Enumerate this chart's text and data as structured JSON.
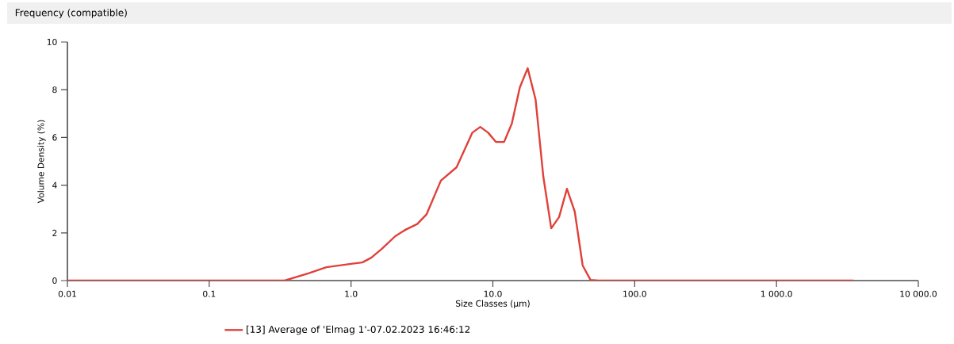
{
  "chart_data": {
    "type": "line",
    "title": "Frequency (compatible)",
    "xlabel": "Size Classes (µm)",
    "ylabel": "Volume Density (%)",
    "log": "x",
    "xlim": [
      0.01,
      10000
    ],
    "ylim": [
      0,
      10
    ],
    "xticks": [
      {
        "value": 0.01,
        "label": "0.01"
      },
      {
        "value": 0.1,
        "label": "0.1"
      },
      {
        "value": 1,
        "label": "1.0"
      },
      {
        "value": 10,
        "label": "10.0"
      },
      {
        "value": 100,
        "label": "100.0"
      },
      {
        "value": 1000,
        "label": "1 000.0"
      },
      {
        "value": 10000,
        "label": "10 000.0"
      }
    ],
    "yticks": [
      0,
      2,
      4,
      6,
      8,
      10
    ],
    "grid": false,
    "legend": "bottom",
    "marker": "none",
    "line_style": "solid",
    "series": [
      {
        "name": "[13] Average of 'Elmag 1'-07.02.2023 16:46:12",
        "color": "#e0403a",
        "x": [
          0.01,
          0.34,
          0.5,
          0.67,
          1.0,
          1.2,
          1.39,
          1.65,
          2.05,
          2.42,
          2.93,
          3.41,
          4.3,
          5.55,
          7.17,
          8.15,
          9.26,
          10.5,
          12.0,
          13.6,
          15.5,
          17.6,
          20.0,
          22.7,
          25.8,
          29.3,
          33.3,
          37.8,
          43.0,
          48.8,
          55.5,
          3500
        ],
        "values": [
          0,
          0,
          0.3,
          0.56,
          0.7,
          0.76,
          0.96,
          1.33,
          1.86,
          2.13,
          2.37,
          2.78,
          4.19,
          4.75,
          6.2,
          6.44,
          6.2,
          5.81,
          5.81,
          6.58,
          8.1,
          8.9,
          7.6,
          4.35,
          2.19,
          2.66,
          3.85,
          2.89,
          0.63,
          0.03,
          0,
          0
        ]
      }
    ]
  }
}
